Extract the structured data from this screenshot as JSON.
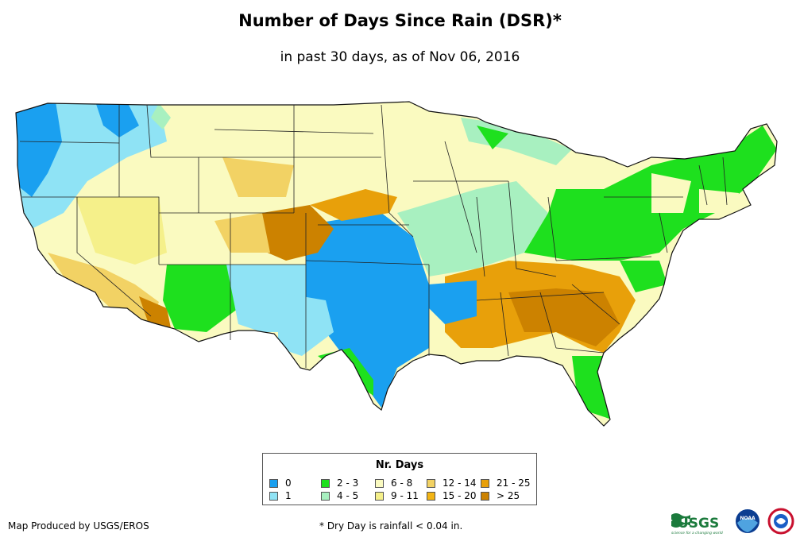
{
  "title": "Number of Days Since Rain (DSR)*",
  "subtitle": "in past 30 days, as of Nov 06, 2016",
  "legend": {
    "title": "Nr. Days",
    "items": [
      {
        "label": "0",
        "color": "#1aa0f0"
      },
      {
        "label": "1",
        "color": "#8fe3f5"
      },
      {
        "label": "2 - 3",
        "color": "#1ee01e"
      },
      {
        "label": "4 - 5",
        "color": "#a8f0c0"
      },
      {
        "label": "6 - 8",
        "color": "#fafac0"
      },
      {
        "label": "9 - 11",
        "color": "#f5f08a"
      },
      {
        "label": "12 - 14",
        "color": "#f2d264"
      },
      {
        "label": "15 - 20",
        "color": "#f2b414"
      },
      {
        "label": "21 - 25",
        "color": "#e8a00a"
      },
      {
        "label": "> 25",
        "color": "#cc8200"
      }
    ]
  },
  "credit": "Map Produced by USGS/EROS",
  "footnote": "* Dry Day is rainfall < 0.04 in.",
  "logos": {
    "usgs": "USGS",
    "usgs_tagline": "science for a changing world",
    "noaa": "NOAA"
  },
  "map": {
    "region": "Contiguous United States",
    "icons": [
      "usgs-logo",
      "noaa-logo",
      "nws-logo"
    ]
  }
}
